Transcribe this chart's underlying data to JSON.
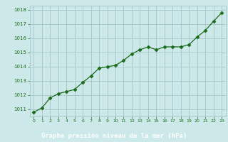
{
  "x": [
    0,
    1,
    2,
    3,
    4,
    5,
    6,
    7,
    8,
    9,
    10,
    11,
    12,
    13,
    14,
    15,
    16,
    17,
    18,
    19,
    20,
    21,
    22,
    23
  ],
  "y": [
    1010.8,
    1011.1,
    1011.8,
    1012.1,
    1012.25,
    1012.4,
    1012.9,
    1013.35,
    1013.9,
    1014.0,
    1014.1,
    1014.45,
    1014.9,
    1015.2,
    1015.4,
    1015.2,
    1015.4,
    1015.4,
    1015.4,
    1015.55,
    1016.1,
    1016.55,
    1017.2,
    1017.8
  ],
  "line_color": "#1a6b1a",
  "marker": "D",
  "marker_size": 2.5,
  "bg_color": "#cce8e8",
  "grid_color": "#aacccc",
  "xlabel": "Graphe pression niveau de la mer (hPa)",
  "xlabel_color": "#1a6b1a",
  "xlabel_bg": "#2a7a2a",
  "tick_color": "#1a6b1a",
  "ylim": [
    1010.5,
    1018.3
  ],
  "xlim": [
    -0.5,
    23.5
  ],
  "yticks": [
    1011,
    1012,
    1013,
    1014,
    1015,
    1016,
    1017,
    1018
  ],
  "xticks": [
    0,
    1,
    2,
    3,
    4,
    5,
    6,
    7,
    8,
    9,
    10,
    11,
    12,
    13,
    14,
    15,
    16,
    17,
    18,
    19,
    20,
    21,
    22,
    23
  ]
}
